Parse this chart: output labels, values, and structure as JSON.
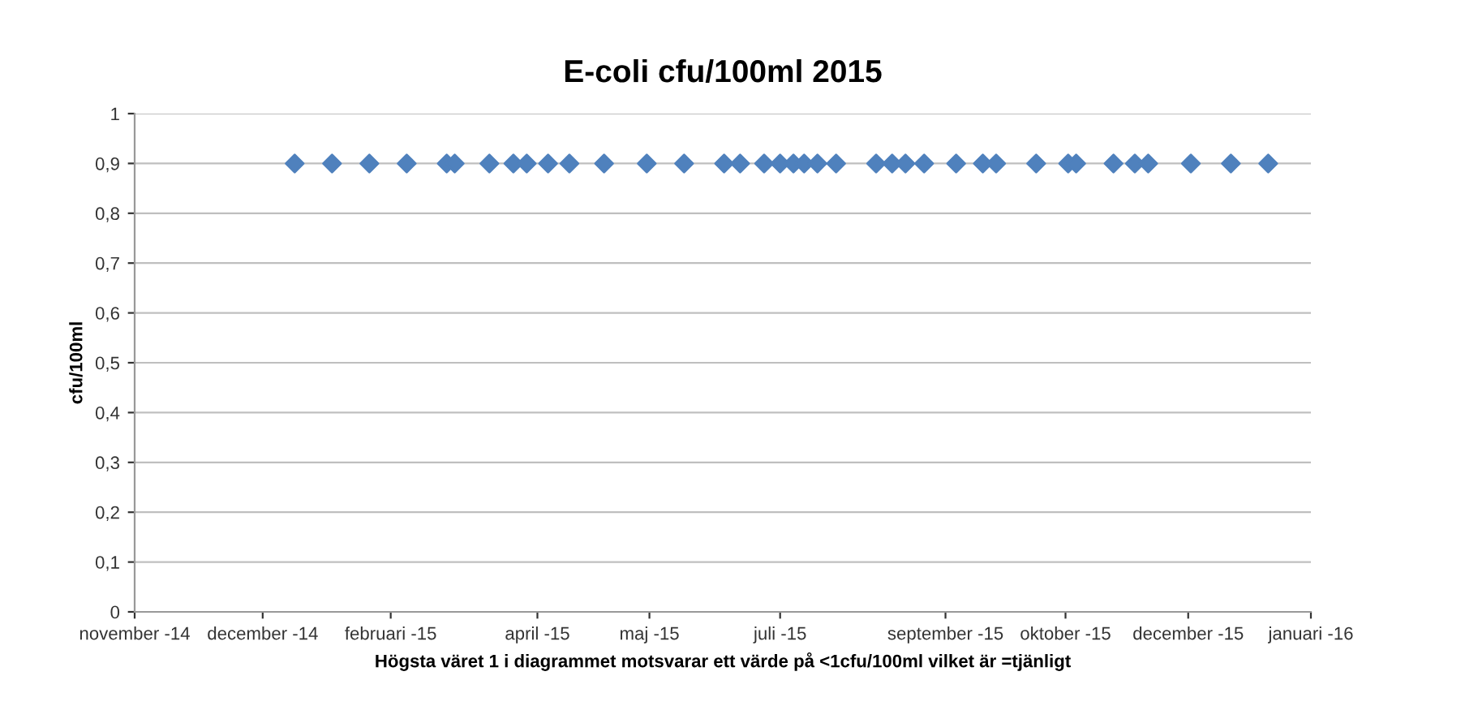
{
  "chart_data": {
    "type": "scatter",
    "title": "E-coli cfu/100ml 2015",
    "ylabel": "cfu/100ml",
    "xlabel": "Högsta väret 1 i diagrammet motsvarar ett värde på <1cfu/100ml vilket är =tjänligt",
    "x": [
      "2014-12-31",
      "2015-01-14",
      "2015-01-28",
      "2015-02-11",
      "2015-02-26",
      "2015-03-01",
      "2015-03-14",
      "2015-03-23",
      "2015-03-28",
      "2015-04-05",
      "2015-04-13",
      "2015-04-26",
      "2015-05-12",
      "2015-05-26",
      "2015-06-10",
      "2015-06-16",
      "2015-06-25",
      "2015-07-01",
      "2015-07-06",
      "2015-07-10",
      "2015-07-15",
      "2015-07-22",
      "2015-08-06",
      "2015-08-12",
      "2015-08-17",
      "2015-08-24",
      "2015-09-05",
      "2015-09-15",
      "2015-09-20",
      "2015-10-05",
      "2015-10-17",
      "2015-10-20",
      "2015-11-03",
      "2015-11-11",
      "2015-11-16",
      "2015-12-02",
      "2015-12-17",
      "2015-12-31"
    ],
    "series": [
      {
        "color": "#4f81bd",
        "values": [
          0.9,
          0.9,
          0.9,
          0.9,
          0.9,
          0.9,
          0.9,
          0.9,
          0.9,
          0.9,
          0.9,
          0.9,
          0.9,
          0.9,
          0.9,
          0.9,
          0.9,
          0.9,
          0.9,
          0.9,
          0.9,
          0.9,
          0.9,
          0.9,
          0.9,
          0.9,
          0.9,
          0.9,
          0.9,
          0.9,
          0.9,
          0.9,
          0.9,
          0.9,
          0.9,
          0.9,
          0.9,
          0.9
        ]
      }
    ],
    "xlim": [
      "2014-11-01",
      "2016-01-16"
    ],
    "xticks": [
      {
        "value": "2014-11-01",
        "label": "november -14"
      },
      {
        "value": "2014-12-19",
        "label": "december -14"
      },
      {
        "value": "2015-02-05",
        "label": "februari -15"
      },
      {
        "value": "2015-04-01",
        "label": "april -15"
      },
      {
        "value": "2015-05-13",
        "label": "maj -15"
      },
      {
        "value": "2015-07-01",
        "label": "juli -15"
      },
      {
        "value": "2015-09-01",
        "label": "september -15"
      },
      {
        "value": "2015-10-16",
        "label": "oktober -15"
      },
      {
        "value": "2015-12-01",
        "label": "december -15"
      },
      {
        "value": "2016-01-16",
        "label": "januari -16"
      }
    ],
    "ylim": [
      0,
      1
    ],
    "yticks": [
      0,
      {
        "value": 0.1,
        "label": "0,1"
      },
      {
        "value": 0.2,
        "label": "0,2"
      },
      {
        "value": 0.3,
        "label": "0,3"
      },
      {
        "value": 0.4,
        "label": "0,4"
      },
      {
        "value": 0.5,
        "label": "0,5"
      },
      {
        "value": 0.6,
        "label": "0,6"
      },
      {
        "value": 0.7,
        "label": "0,7"
      },
      {
        "value": 0.8,
        "label": "0,8"
      },
      {
        "value": 0.9,
        "label": "0,9"
      },
      1
    ],
    "grid": "y",
    "marker": "diamond"
  }
}
